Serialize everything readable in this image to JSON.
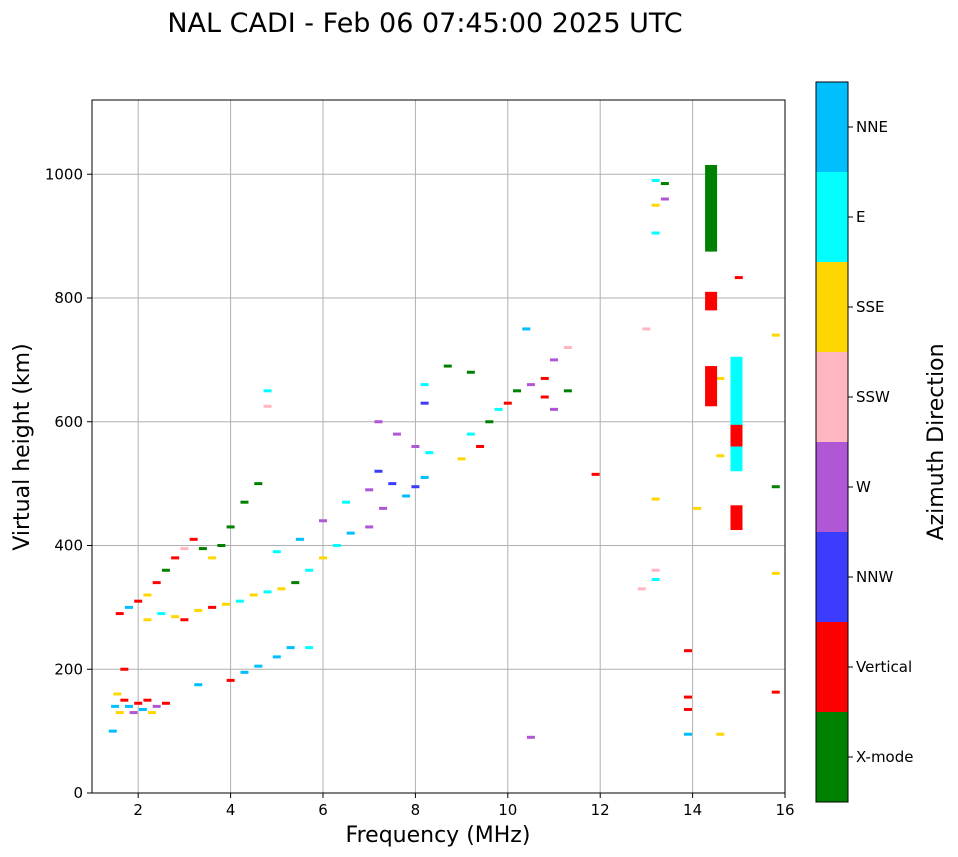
{
  "chart_data": {
    "type": "scatter",
    "title": "NAL CADI - Feb 06 07:45:00 2025 UTC",
    "xlabel": "Frequency (MHz)",
    "ylabel": "Virtual height (km)",
    "xlim": [
      1,
      16
    ],
    "ylim": [
      0,
      1120
    ],
    "xticks": [
      2,
      4,
      6,
      8,
      10,
      12,
      14,
      16
    ],
    "yticks": [
      0,
      200,
      400,
      600,
      800,
      1000
    ],
    "grid": true,
    "colorbar": {
      "label": "Azimuth Direction",
      "categories": [
        "X-mode",
        "Vertical",
        "NNW",
        "W",
        "SSW",
        "SSE",
        "E",
        "NNE"
      ],
      "colors": [
        "#008000",
        "#ff0000",
        "#3c3cff",
        "#b057d6",
        "#ffb6c1",
        "#ffd700",
        "#00ffff",
        "#00bfff"
      ]
    },
    "echoes": [
      {
        "f": 1.5,
        "h": 140,
        "d": "NNE"
      },
      {
        "f": 1.6,
        "h": 130,
        "d": "SSE"
      },
      {
        "f": 1.7,
        "h": 150,
        "d": "Vertical"
      },
      {
        "f": 1.8,
        "h": 140,
        "d": "NNE"
      },
      {
        "f": 1.9,
        "h": 130,
        "d": "W"
      },
      {
        "f": 2.0,
        "h": 145,
        "d": "Vertical"
      },
      {
        "f": 2.1,
        "h": 135,
        "d": "NNE"
      },
      {
        "f": 2.2,
        "h": 150,
        "d": "Vertical"
      },
      {
        "f": 2.3,
        "h": 130,
        "d": "SSE"
      },
      {
        "f": 2.4,
        "h": 140,
        "d": "W"
      },
      {
        "f": 2.6,
        "h": 145,
        "d": "Vertical"
      },
      {
        "f": 1.45,
        "h": 100,
        "d": "NNE"
      },
      {
        "f": 1.55,
        "h": 160,
        "d": "SSE"
      },
      {
        "f": 1.7,
        "h": 200,
        "d": "Vertical"
      },
      {
        "f": 1.6,
        "h": 290,
        "d": "Vertical"
      },
      {
        "f": 1.8,
        "h": 300,
        "d": "NNE"
      },
      {
        "f": 2.0,
        "h": 310,
        "d": "Vertical"
      },
      {
        "f": 2.2,
        "h": 320,
        "d": "SSE"
      },
      {
        "f": 2.4,
        "h": 340,
        "d": "Vertical"
      },
      {
        "f": 2.6,
        "h": 360,
        "d": "X-mode"
      },
      {
        "f": 2.8,
        "h": 380,
        "d": "Vertical"
      },
      {
        "f": 3.0,
        "h": 395,
        "d": "SSW"
      },
      {
        "f": 3.2,
        "h": 410,
        "d": "Vertical"
      },
      {
        "f": 3.4,
        "h": 395,
        "d": "X-mode"
      },
      {
        "f": 3.6,
        "h": 380,
        "d": "SSE"
      },
      {
        "f": 3.8,
        "h": 400,
        "d": "X-mode"
      },
      {
        "f": 4.0,
        "h": 430,
        "d": "X-mode"
      },
      {
        "f": 4.3,
        "h": 470,
        "d": "X-mode"
      },
      {
        "f": 4.6,
        "h": 500,
        "d": "X-mode"
      },
      {
        "f": 2.2,
        "h": 280,
        "d": "SSE"
      },
      {
        "f": 2.5,
        "h": 290,
        "d": "E"
      },
      {
        "f": 2.8,
        "h": 285,
        "d": "SSE"
      },
      {
        "f": 3.0,
        "h": 280,
        "d": "Vertical"
      },
      {
        "f": 3.3,
        "h": 295,
        "d": "SSE"
      },
      {
        "f": 3.6,
        "h": 300,
        "d": "Vertical"
      },
      {
        "f": 3.9,
        "h": 305,
        "d": "SSE"
      },
      {
        "f": 4.2,
        "h": 310,
        "d": "E"
      },
      {
        "f": 4.5,
        "h": 320,
        "d": "SSE"
      },
      {
        "f": 4.8,
        "h": 325,
        "d": "E"
      },
      {
        "f": 5.1,
        "h": 330,
        "d": "SSE"
      },
      {
        "f": 5.4,
        "h": 340,
        "d": "X-mode"
      },
      {
        "f": 5.7,
        "h": 360,
        "d": "E"
      },
      {
        "f": 6.0,
        "h": 380,
        "d": "SSE"
      },
      {
        "f": 6.3,
        "h": 400,
        "d": "E"
      },
      {
        "f": 6.6,
        "h": 420,
        "d": "NNE"
      },
      {
        "f": 5.0,
        "h": 390,
        "d": "E"
      },
      {
        "f": 5.5,
        "h": 410,
        "d": "NNE"
      },
      {
        "f": 6.0,
        "h": 440,
        "d": "W"
      },
      {
        "f": 6.5,
        "h": 470,
        "d": "E"
      },
      {
        "f": 7.0,
        "h": 490,
        "d": "W"
      },
      {
        "f": 7.2,
        "h": 520,
        "d": "NNW"
      },
      {
        "f": 7.5,
        "h": 500,
        "d": "NNW"
      },
      {
        "f": 7.8,
        "h": 480,
        "d": "NNE"
      },
      {
        "f": 8.0,
        "h": 495,
        "d": "NNW"
      },
      {
        "f": 8.2,
        "h": 510,
        "d": "NNE"
      },
      {
        "f": 7.0,
        "h": 430,
        "d": "W"
      },
      {
        "f": 7.3,
        "h": 460,
        "d": "W"
      },
      {
        "f": 7.2,
        "h": 600,
        "d": "W"
      },
      {
        "f": 7.6,
        "h": 580,
        "d": "W"
      },
      {
        "f": 8.0,
        "h": 560,
        "d": "W"
      },
      {
        "f": 8.3,
        "h": 550,
        "d": "E"
      },
      {
        "f": 3.3,
        "h": 175,
        "d": "NNE"
      },
      {
        "f": 4.0,
        "h": 182,
        "d": "Vertical"
      },
      {
        "f": 4.3,
        "h": 195,
        "d": "NNE"
      },
      {
        "f": 4.6,
        "h": 205,
        "d": "NNE"
      },
      {
        "f": 5.0,
        "h": 220,
        "d": "NNE"
      },
      {
        "f": 5.3,
        "h": 235,
        "d": "NNE"
      },
      {
        "f": 5.7,
        "h": 235,
        "d": "E"
      },
      {
        "f": 9.0,
        "h": 540,
        "d": "SSE"
      },
      {
        "f": 9.2,
        "h": 580,
        "d": "E"
      },
      {
        "f": 9.4,
        "h": 560,
        "d": "Vertical"
      },
      {
        "f": 9.6,
        "h": 600,
        "d": "X-mode"
      },
      {
        "f": 9.8,
        "h": 620,
        "d": "E"
      },
      {
        "f": 10.0,
        "h": 630,
        "d": "Vertical"
      },
      {
        "f": 10.2,
        "h": 650,
        "d": "X-mode"
      },
      {
        "f": 10.5,
        "h": 660,
        "d": "W"
      },
      {
        "f": 10.8,
        "h": 670,
        "d": "Vertical"
      },
      {
        "f": 11.0,
        "h": 700,
        "d": "W"
      },
      {
        "f": 11.3,
        "h": 720,
        "d": "SSW"
      },
      {
        "f": 9.2,
        "h": 680,
        "d": "X-mode"
      },
      {
        "f": 8.7,
        "h": 690,
        "d": "X-mode"
      },
      {
        "f": 10.4,
        "h": 750,
        "d": "NNE"
      },
      {
        "f": 10.8,
        "h": 640,
        "d": "Vertical"
      },
      {
        "f": 11.0,
        "h": 620,
        "d": "W"
      },
      {
        "f": 11.3,
        "h": 650,
        "d": "X-mode"
      },
      {
        "f": 11.9,
        "h": 515,
        "d": "Vertical"
      },
      {
        "f": 8.2,
        "h": 660,
        "d": "E"
      },
      {
        "f": 8.2,
        "h": 630,
        "d": "NNW"
      },
      {
        "f": 4.8,
        "h": 650,
        "d": "E"
      },
      {
        "f": 4.8,
        "h": 625,
        "d": "SSW"
      },
      {
        "f": 13.0,
        "h": 750,
        "d": "SSW"
      },
      {
        "f": 13.2,
        "h": 990,
        "d": "E"
      },
      {
        "f": 13.2,
        "h": 950,
        "d": "SSE"
      },
      {
        "f": 13.4,
        "h": 985,
        "d": "X-mode"
      },
      {
        "f": 13.4,
        "h": 960,
        "d": "W"
      },
      {
        "f": 13.2,
        "h": 905,
        "d": "E"
      },
      {
        "f": 13.2,
        "h": 475,
        "d": "SSE"
      },
      {
        "f": 13.2,
        "h": 360,
        "d": "SSW"
      },
      {
        "f": 13.2,
        "h": 345,
        "d": "E"
      },
      {
        "f": 12.9,
        "h": 330,
        "d": "SSW"
      },
      {
        "f": 14.1,
        "h": 460,
        "d": "SSE"
      },
      {
        "f": 14.6,
        "h": 545,
        "d": "SSE"
      },
      {
        "f": 14.6,
        "h": 670,
        "d": "SSE"
      },
      {
        "f": 14.6,
        "h": 95,
        "d": "SSE"
      },
      {
        "f": 13.9,
        "h": 230,
        "d": "Vertical"
      },
      {
        "f": 13.9,
        "h": 155,
        "d": "Vertical"
      },
      {
        "f": 13.9,
        "h": 135,
        "d": "Vertical"
      },
      {
        "f": 13.9,
        "h": 95,
        "d": "NNE"
      },
      {
        "f": 10.5,
        "h": 90,
        "d": "W"
      },
      {
        "f": 15.8,
        "h": 740,
        "d": "SSE"
      },
      {
        "f": 15.8,
        "h": 495,
        "d": "X-mode"
      },
      {
        "f": 15.8,
        "h": 355,
        "d": "SSE"
      },
      {
        "f": 15.8,
        "h": 163,
        "d": "Vertical"
      },
      {
        "f": 15.0,
        "h": 833,
        "d": "Vertical"
      }
    ],
    "bars": [
      {
        "f": 14.4,
        "h1": 875,
        "h2": 1015,
        "d": "X-mode"
      },
      {
        "f": 14.4,
        "h1": 780,
        "h2": 810,
        "d": "Vertical"
      },
      {
        "f": 14.4,
        "h1": 625,
        "h2": 690,
        "d": "Vertical"
      },
      {
        "f": 14.95,
        "h1": 640,
        "h2": 705,
        "d": "E"
      },
      {
        "f": 14.95,
        "h1": 520,
        "h2": 640,
        "d": "E"
      },
      {
        "f": 14.95,
        "h1": 560,
        "h2": 595,
        "d": "Vertical"
      },
      {
        "f": 14.95,
        "h1": 425,
        "h2": 465,
        "d": "Vertical"
      }
    ]
  }
}
